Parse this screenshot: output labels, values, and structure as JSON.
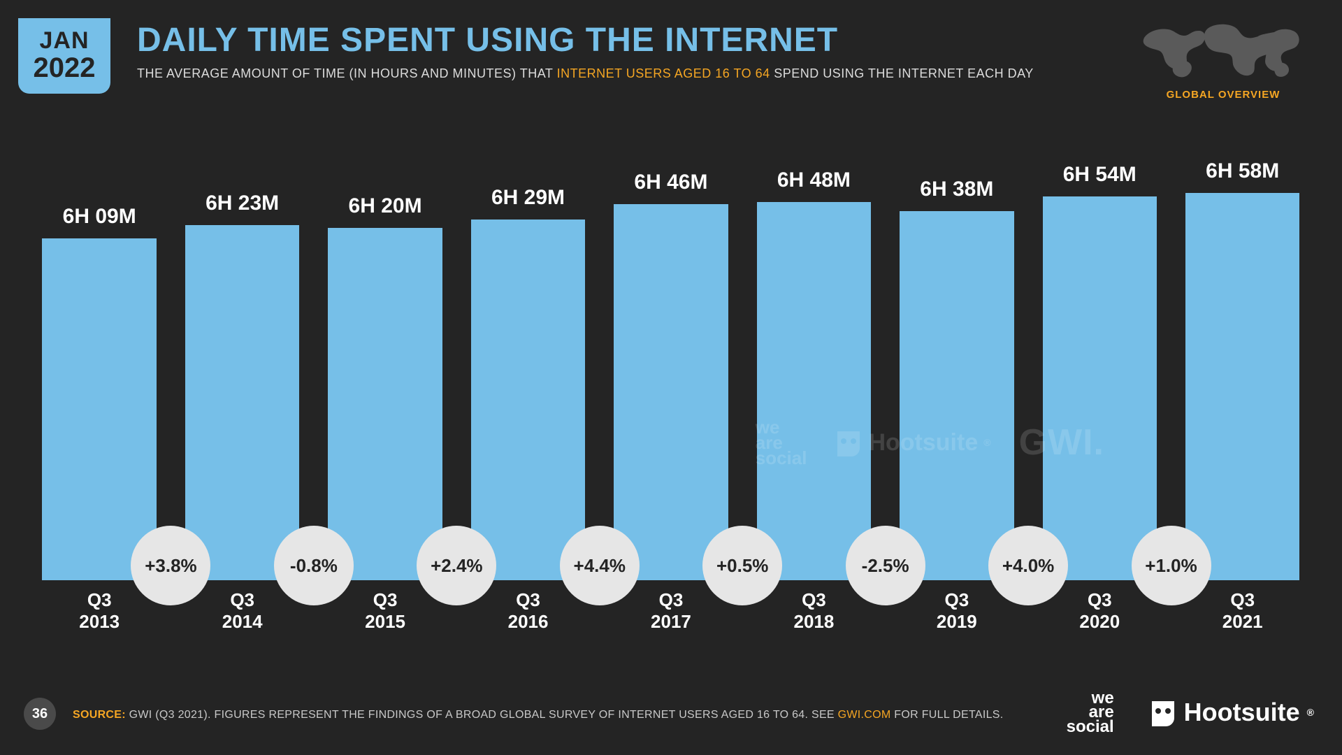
{
  "colors": {
    "background": "#242424",
    "accent": "#76bfe8",
    "highlight": "#f5a623",
    "text": "#ffffff",
    "badge_bg": "#e6e6e6",
    "badge_text": "#242424",
    "pagecircle": "#4a4a4a",
    "map_fill": "#5a5a5a"
  },
  "header": {
    "date_month": "JAN",
    "date_year": "2022",
    "title": "DAILY TIME SPENT USING THE INTERNET",
    "subtitle_pre": "THE AVERAGE AMOUNT OF TIME (IN HOURS AND MINUTES) THAT ",
    "subtitle_hl": "INTERNET USERS AGED 16 TO 64",
    "subtitle_post": " SPEND USING THE INTERNET EACH DAY",
    "globe_caption": "GLOBAL OVERVIEW"
  },
  "chart": {
    "type": "bar",
    "bar_color": "#76bfe8",
    "value_label_fontsize": 30,
    "axis_label_fontsize": 26,
    "y_domain_minutes": [
      0,
      460
    ],
    "bars": [
      {
        "quarter": "Q3",
        "year": "2013",
        "label": "6H 09M",
        "minutes": 369
      },
      {
        "quarter": "Q3",
        "year": "2014",
        "label": "6H 23M",
        "minutes": 383
      },
      {
        "quarter": "Q3",
        "year": "2015",
        "label": "6H 20M",
        "minutes": 380
      },
      {
        "quarter": "Q3",
        "year": "2016",
        "label": "6H 29M",
        "minutes": 389
      },
      {
        "quarter": "Q3",
        "year": "2017",
        "label": "6H 46M",
        "minutes": 406
      },
      {
        "quarter": "Q3",
        "year": "2018",
        "label": "6H 48M",
        "minutes": 408
      },
      {
        "quarter": "Q3",
        "year": "2019",
        "label": "6H 38M",
        "minutes": 398
      },
      {
        "quarter": "Q3",
        "year": "2020",
        "label": "6H 54M",
        "minutes": 414
      },
      {
        "quarter": "Q3",
        "year": "2021",
        "label": "6H 58M",
        "minutes": 418
      }
    ],
    "deltas": [
      "+3.8%",
      "-0.8%",
      "+2.4%",
      "+4.4%",
      "+0.5%",
      "-2.5%",
      "+4.0%",
      "+1.0%"
    ]
  },
  "watermark": {
    "we_are_social": "we\nare\nsocial",
    "hootsuite": "Hootsuite",
    "gwi": "GWI."
  },
  "footer": {
    "page": "36",
    "source_label": "SOURCE:",
    "source_text_pre": " GWI (Q3 2021). FIGURES REPRESENT THE FINDINGS OF A BROAD GLOBAL SURVEY OF INTERNET USERS AGED 16 TO 64. SEE ",
    "source_link": "GWI.COM",
    "source_text_post": " FOR FULL DETAILS.",
    "logo_was": "we\nare\nsocial",
    "logo_hoot": "Hootsuite",
    "reg": "®"
  }
}
